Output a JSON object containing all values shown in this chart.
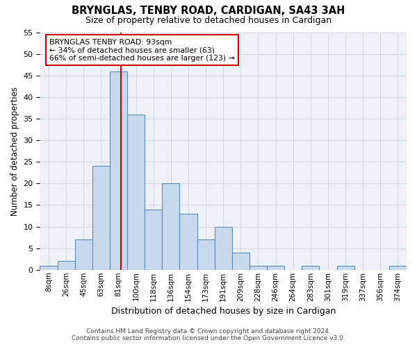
{
  "title": "BRYNGLAS, TENBY ROAD, CARDIGAN, SA43 3AH",
  "subtitle": "Size of property relative to detached houses in Cardigan",
  "xlabel": "Distribution of detached houses by size in Cardigan",
  "ylabel": "Number of detached properties",
  "bin_labels": [
    "8sqm",
    "26sqm",
    "45sqm",
    "63sqm",
    "81sqm",
    "100sqm",
    "118sqm",
    "136sqm",
    "154sqm",
    "173sqm",
    "191sqm",
    "209sqm",
    "228sqm",
    "246sqm",
    "264sqm",
    "283sqm",
    "301sqm",
    "319sqm",
    "337sqm",
    "356sqm",
    "374sqm"
  ],
  "values": [
    1,
    2,
    7,
    24,
    46,
    36,
    14,
    20,
    13,
    7,
    10,
    4,
    1,
    1,
    0,
    1,
    0,
    1,
    0,
    0,
    1
  ],
  "bar_color": "#c9d9ed",
  "bar_edge_color": "#5b8ab5",
  "grid_color": "#d0d8e8",
  "bg_color": "#eef2f8",
  "marker_bin_index": 4,
  "marker_label_line1": "BRYNGLAS TENBY ROAD: 93sqm",
  "marker_label_line2": "← 34% of detached houses are smaller (63)",
  "marker_label_line3": "66% of semi-detached houses are larger (123) →",
  "marker_color": "#cc0000",
  "annotation_box_color": "#ffffff",
  "annotation_box_edge": "#cc0000",
  "ylim": [
    0,
    55
  ],
  "yticks": [
    0,
    5,
    10,
    15,
    20,
    25,
    30,
    35,
    40,
    45,
    50,
    55
  ],
  "footer_line1": "Contains HM Land Registry data © Crown copyright and database right 2024.",
  "footer_line2": "Contains public sector information licensed under the Open Government Licence v3.0."
}
